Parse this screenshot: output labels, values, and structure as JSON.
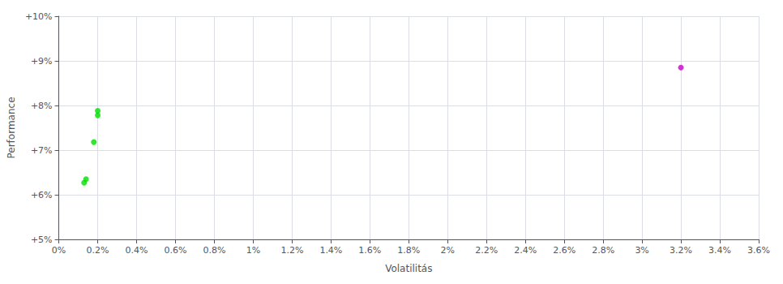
{
  "chart_data": {
    "type": "scatter",
    "xlabel": "Volatilitás",
    "ylabel": "Performance",
    "xlim": [
      0,
      0.036
    ],
    "ylim": [
      0.05,
      0.1
    ],
    "xticks": [
      {
        "value": 0.0,
        "label": "0%"
      },
      {
        "value": 0.002,
        "label": "0.2%"
      },
      {
        "value": 0.004,
        "label": "0.4%"
      },
      {
        "value": 0.006,
        "label": "0.6%"
      },
      {
        "value": 0.008,
        "label": "0.8%"
      },
      {
        "value": 0.01,
        "label": "1%"
      },
      {
        "value": 0.012,
        "label": "1.2%"
      },
      {
        "value": 0.014,
        "label": "1.4%"
      },
      {
        "value": 0.016,
        "label": "1.6%"
      },
      {
        "value": 0.018,
        "label": "1.8%"
      },
      {
        "value": 0.02,
        "label": "2%"
      },
      {
        "value": 0.022,
        "label": "2.2%"
      },
      {
        "value": 0.024,
        "label": "2.4%"
      },
      {
        "value": 0.026,
        "label": "2.6%"
      },
      {
        "value": 0.028,
        "label": "2.8%"
      },
      {
        "value": 0.03,
        "label": "3%"
      },
      {
        "value": 0.032,
        "label": "3.2%"
      },
      {
        "value": 0.034,
        "label": "3.4%"
      },
      {
        "value": 0.036,
        "label": "3.6%"
      }
    ],
    "yticks": [
      {
        "value": 0.05,
        "label": "+5%"
      },
      {
        "value": 0.06,
        "label": "+6%"
      },
      {
        "value": 0.07,
        "label": "+7%"
      },
      {
        "value": 0.08,
        "label": "+8%"
      },
      {
        "value": 0.09,
        "label": "+9%"
      },
      {
        "value": 0.1,
        "label": "+10%"
      }
    ],
    "grid": true,
    "series": [
      {
        "color": "#00dd00",
        "x": [
          0.0013,
          0.0014,
          0.0018,
          0.002,
          0.002
        ],
        "values": [
          0.0627,
          0.0635,
          0.0718,
          0.0778,
          0.0788
        ]
      },
      {
        "color": "#cc00cc",
        "x": [
          0.032
        ],
        "values": [
          0.0885
        ]
      }
    ]
  }
}
